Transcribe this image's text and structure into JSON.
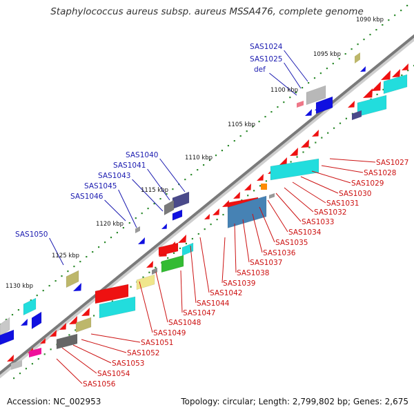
{
  "title": "Staphylococcus aureus subsp. aureus MSSA476, complete genome",
  "footer": {
    "accession": "Accession: NC_002953",
    "summary": "Topology: circular; Length: 2,799,802 bp; Genes: 2,675"
  },
  "colors": {
    "backbone": "#7a7a7a",
    "ticks": "#2e8b2e",
    "label_blue": "#1a1ab0",
    "label_red": "#cc1111",
    "gene_red": "#ee1111",
    "gene_blue": "#1010e0",
    "gene_cyan": "#22dddd",
    "gene_grey": "#9a9a9a",
    "gene_khaki": "#bdb76b",
    "gene_green": "#33bb33",
    "gene_steel": "#4682b4",
    "gene_slate": "#4a4a8a",
    "gene_orange": "#ff8c00",
    "gene_magenta": "#ee1199",
    "gene_pink": "#ee7788"
  },
  "scale_labels": [
    "1090 kbp",
    "1095 kbp",
    "1100 kbp",
    "1105 kbp",
    "1110 kbp",
    "1115 kbp",
    "1120 kbp",
    "1125 kbp",
    "1130 kbp"
  ],
  "labels_blue": [
    "SAS1024",
    "SAS1025",
    "def",
    "SAS1040",
    "SAS1041",
    "SAS1043",
    "SAS1045",
    "SAS1046",
    "SAS1050"
  ],
  "labels_red": [
    "SAS1027",
    "SAS1028",
    "SAS1029",
    "SAS1030",
    "SAS1031",
    "SAS1032",
    "SAS1033",
    "SAS1034",
    "SAS1035",
    "SAS1036",
    "SAS1037",
    "SAS1038",
    "SAS1039",
    "SAS1042",
    "SAS1044",
    "SAS1047",
    "SAS1048",
    "SAS1049",
    "SAS1051",
    "SAS1052",
    "SAS1053",
    "SAS1054",
    "SAS1056"
  ]
}
